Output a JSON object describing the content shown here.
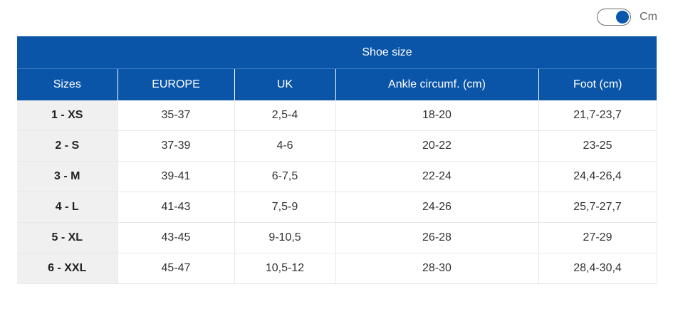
{
  "toggle": {
    "label": "Cm",
    "on": true
  },
  "table": {
    "title": "Shoe size",
    "headers": [
      "Sizes",
      "EUROPE",
      "UK",
      "Ankle circumf. (cm)",
      "Foot (cm)"
    ],
    "rows": [
      [
        "1 - XS",
        "35-37",
        "2,5-4",
        "18-20",
        "21,7-23,7"
      ],
      [
        "2 - S",
        "37-39",
        "4-6",
        "20-22",
        "23-25"
      ],
      [
        "3 - M",
        "39-41",
        "6-7,5",
        "22-24",
        "24,4-26,4"
      ],
      [
        "4 - L",
        "41-43",
        "7,5-9",
        "24-26",
        "25,7-27,7"
      ],
      [
        "5 - XL",
        "43-45",
        "9-10,5",
        "26-28",
        "27-29"
      ],
      [
        "6 - XXL",
        "45-47",
        "10,5-12",
        "28-30",
        "28,4-30,4"
      ]
    ]
  }
}
